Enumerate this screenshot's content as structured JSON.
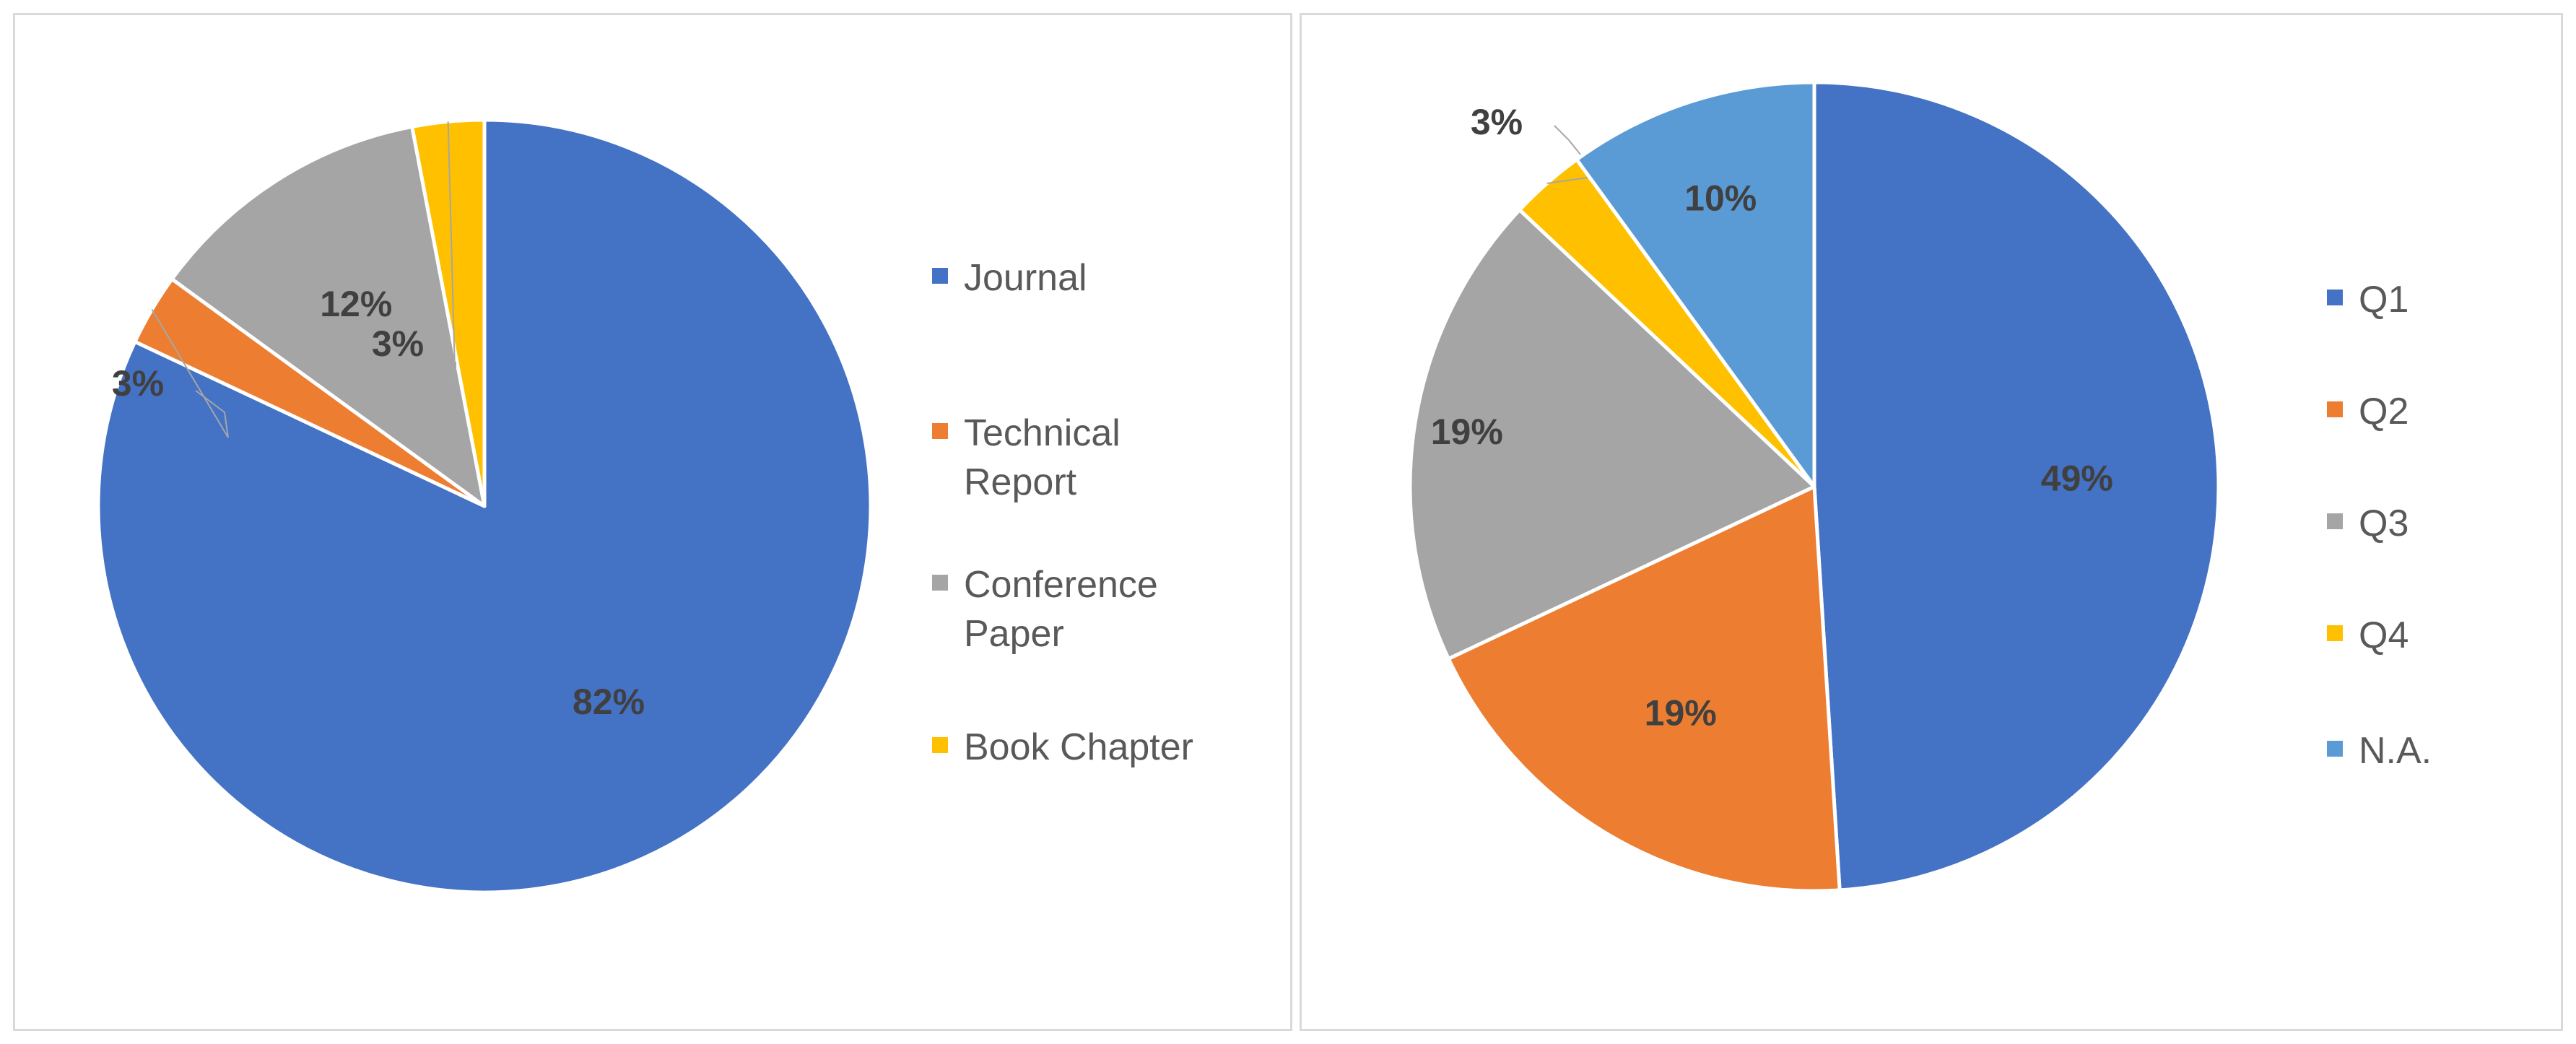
{
  "chart_data": [
    {
      "type": "pie",
      "title": "",
      "slices": [
        {
          "label": "Journal",
          "value": 82,
          "display": "82%",
          "color": "#4472c4"
        },
        {
          "label": "Technical Report",
          "value": 3,
          "display": "3%",
          "color": "#ed7d31"
        },
        {
          "label": "Conference Paper",
          "value": 12,
          "display": "12%",
          "color": "#a5a5a5"
        },
        {
          "label": "Book Chapter",
          "value": 3,
          "display": "3%",
          "color": "#ffc000"
        }
      ],
      "legend": {
        "placement": "right",
        "items": [
          {
            "lines": [
              "Journal"
            ],
            "color": "#4472c4"
          },
          {
            "lines": [
              "Technical",
              "Report"
            ],
            "color": "#ed7d31"
          },
          {
            "lines": [
              "Conference",
              "Paper"
            ],
            "color": "#a5a5a5"
          },
          {
            "lines": [
              "Book Chapter"
            ],
            "color": "#ffc000"
          }
        ]
      }
    },
    {
      "type": "pie",
      "title": "",
      "slices": [
        {
          "label": "Q1",
          "value": 49,
          "display": "49%",
          "color": "#4472c4"
        },
        {
          "label": "Q2",
          "value": 19,
          "display": "19%",
          "color": "#ed7d31"
        },
        {
          "label": "Q3",
          "value": 19,
          "display": "19%",
          "color": "#a5a5a5"
        },
        {
          "label": "Q4",
          "value": 3,
          "display": "3%",
          "color": "#ffc000"
        },
        {
          "label": "N.A.",
          "value": 10,
          "display": "10%",
          "color": "#5b9bd5"
        }
      ],
      "legend": {
        "placement": "right",
        "items": [
          {
            "lines": [
              "Q1"
            ],
            "color": "#4472c4"
          },
          {
            "lines": [
              "Q2"
            ],
            "color": "#ed7d31"
          },
          {
            "lines": [
              "Q3"
            ],
            "color": "#a5a5a5"
          },
          {
            "lines": [
              "Q4"
            ],
            "color": "#ffc000"
          },
          {
            "lines": [
              "N.A."
            ],
            "color": "#5b9bd5"
          }
        ]
      }
    }
  ]
}
